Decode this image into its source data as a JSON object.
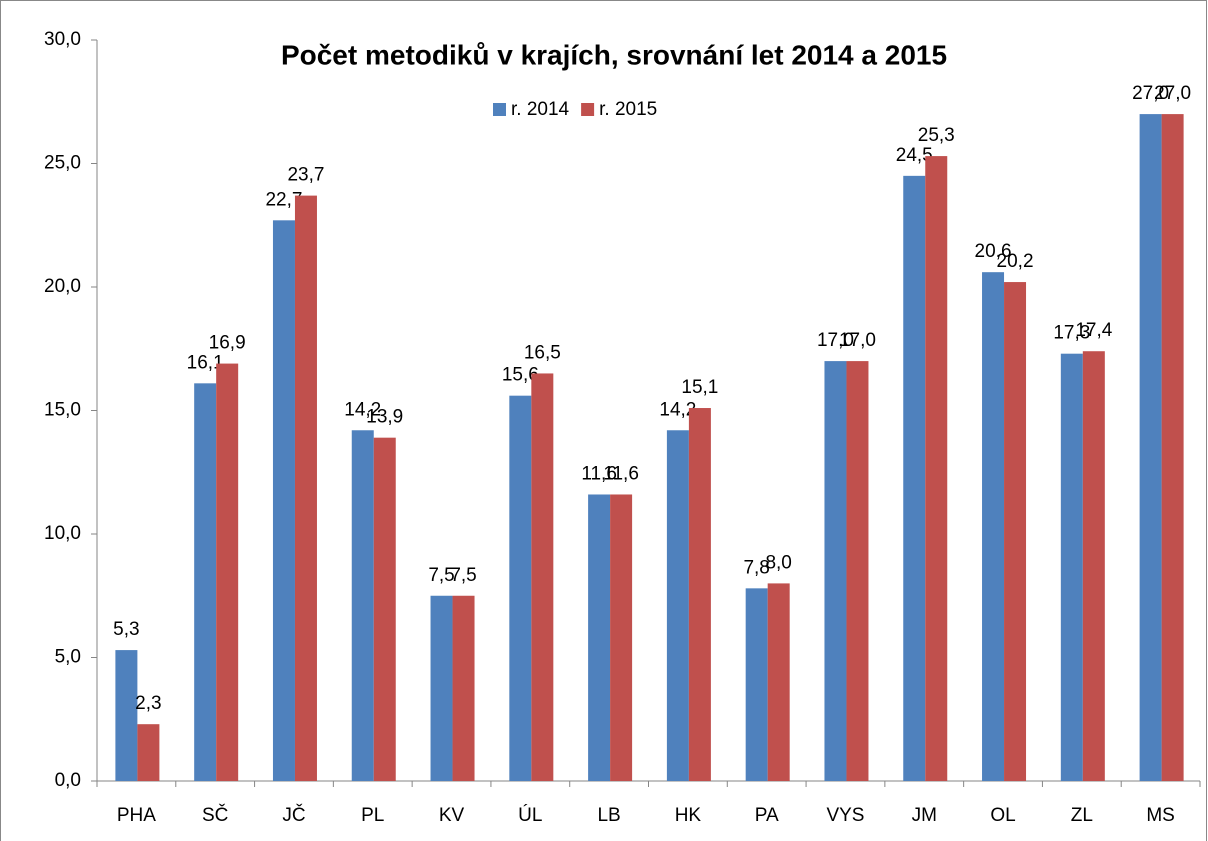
{
  "chart_data": {
    "type": "bar",
    "title": "Počet metodiků v krajích, srovnání let 2014 a 2015",
    "categories": [
      "PHA",
      "SČ",
      "JČ",
      "PL",
      "KV",
      "ÚL",
      "LB",
      "HK",
      "PA",
      "VYS",
      "JM",
      "OL",
      "ZL",
      "MS"
    ],
    "series": [
      {
        "name": "r. 2014",
        "color": "#4f81bd",
        "values": [
          5.3,
          16.1,
          22.7,
          14.2,
          7.5,
          15.6,
          11.6,
          14.2,
          7.8,
          17.0,
          24.5,
          20.6,
          17.3,
          27.0
        ],
        "value_labels": [
          "5,3",
          "16,1",
          "22,7",
          "14,2",
          "7,5",
          "15,6",
          "11,6",
          "14,2",
          "7,8",
          "17,0",
          "24,5",
          "20,6",
          "17,3",
          "27,0"
        ]
      },
      {
        "name": "r. 2015",
        "color": "#c0504d",
        "values": [
          2.3,
          16.9,
          23.7,
          13.9,
          7.5,
          16.5,
          11.6,
          15.1,
          8.0,
          17.0,
          25.3,
          20.2,
          17.4,
          27.0
        ],
        "value_labels": [
          "2,3",
          "16,9",
          "23,7",
          "13,9",
          "7,5",
          "16,5",
          "11,6",
          "15,1",
          "8,0",
          "17,0",
          "25,3",
          "20,2",
          "17,4",
          "27,0"
        ]
      }
    ],
    "ylim": [
      0,
      30
    ],
    "yticks": [
      {
        "value": 0,
        "label": "0,0"
      },
      {
        "value": 5,
        "label": "5,0"
      },
      {
        "value": 10,
        "label": "10,0"
      },
      {
        "value": 15,
        "label": "15,0"
      },
      {
        "value": 20,
        "label": "20,0"
      },
      {
        "value": 25,
        "label": "25,0"
      },
      {
        "value": 30,
        "label": "30,0"
      }
    ],
    "grid": false,
    "legend": "top"
  }
}
